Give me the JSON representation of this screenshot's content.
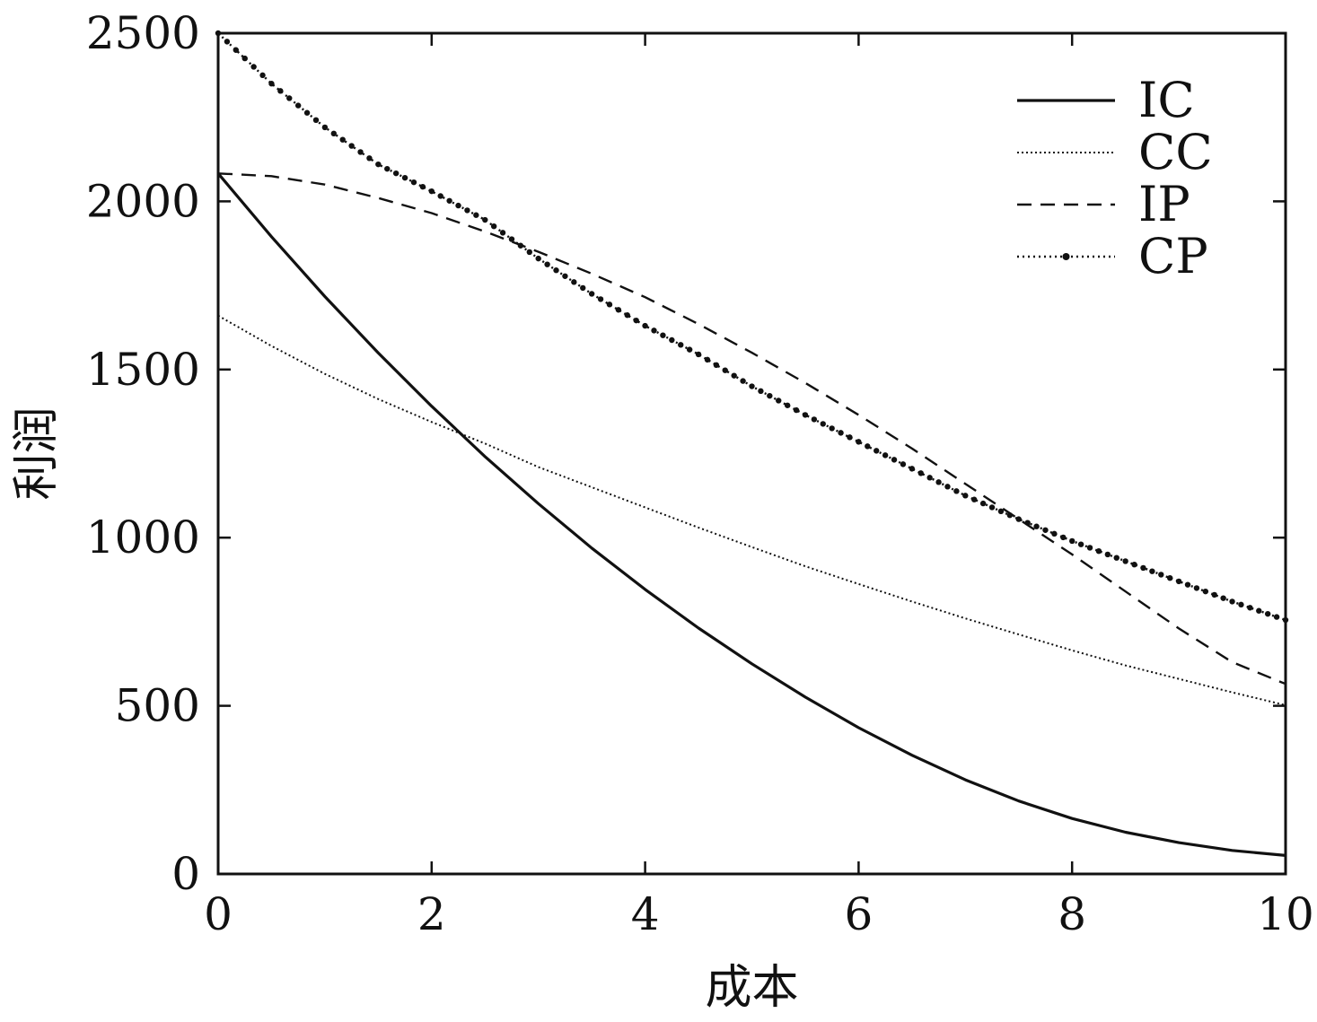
{
  "chart_data": {
    "type": "line",
    "title": "",
    "xlabel": "成本",
    "ylabel": "利润",
    "xlim": [
      0,
      10
    ],
    "ylim": [
      0,
      2500
    ],
    "xticks": [
      "0",
      "2",
      "4",
      "6",
      "8",
      "10"
    ],
    "yticks": [
      "0",
      "500",
      "1000",
      "1500",
      "2000",
      "2500"
    ],
    "grid": false,
    "legend_position": "top-right",
    "series": [
      {
        "name": "IC",
        "style": "solid",
        "x": [
          0,
          0.5,
          1,
          1.5,
          2,
          2.5,
          3,
          3.5,
          4,
          4.5,
          5,
          5.5,
          6,
          6.5,
          7,
          7.5,
          8,
          8.5,
          9,
          9.5,
          10
        ],
        "y": [
          2083,
          1895,
          1717,
          1549,
          1391,
          1241,
          1101,
          969,
          846,
          731,
          625,
          526,
          435,
          353,
          280,
          217,
          165,
          124,
          93,
          70,
          55
        ]
      },
      {
        "name": "CC",
        "style": "dotted",
        "x": [
          0,
          0.5,
          1,
          1.5,
          2,
          2.5,
          3,
          3.5,
          4,
          4.5,
          5,
          5.5,
          6,
          6.5,
          7,
          7.5,
          8,
          8.5,
          9,
          9.5,
          10
        ],
        "y": [
          1660,
          1570,
          1487,
          1412,
          1344,
          1280,
          1210,
          1150,
          1090,
          1030,
          972,
          915,
          862,
          810,
          760,
          712,
          665,
          620,
          580,
          540,
          502
        ]
      },
      {
        "name": "IP",
        "style": "dashed",
        "x": [
          0,
          0.5,
          1,
          1.5,
          2,
          2.5,
          3,
          3.5,
          4,
          4.5,
          5,
          5.5,
          6,
          6.5,
          7,
          7.5,
          8,
          8.5,
          9,
          9.5,
          10
        ],
        "y": [
          2083,
          2075,
          2050,
          2010,
          1965,
          1910,
          1850,
          1785,
          1715,
          1635,
          1550,
          1460,
          1365,
          1265,
          1160,
          1055,
          950,
          840,
          730,
          630,
          565
        ]
      },
      {
        "name": "CP",
        "style": "dotted-with-points",
        "x": [
          0,
          0.5,
          1,
          1.5,
          2,
          2.5,
          3,
          3.5,
          4,
          4.5,
          5,
          5.5,
          6,
          6.5,
          7,
          7.5,
          8,
          8.5,
          9,
          9.5,
          10
        ],
        "y": [
          2500,
          2350,
          2220,
          2110,
          2030,
          1945,
          1830,
          1725,
          1630,
          1545,
          1450,
          1365,
          1285,
          1205,
          1125,
          1055,
          990,
          930,
          870,
          810,
          755
        ]
      }
    ]
  },
  "colors": {
    "background": "#ffffff",
    "ink": "#111111"
  }
}
